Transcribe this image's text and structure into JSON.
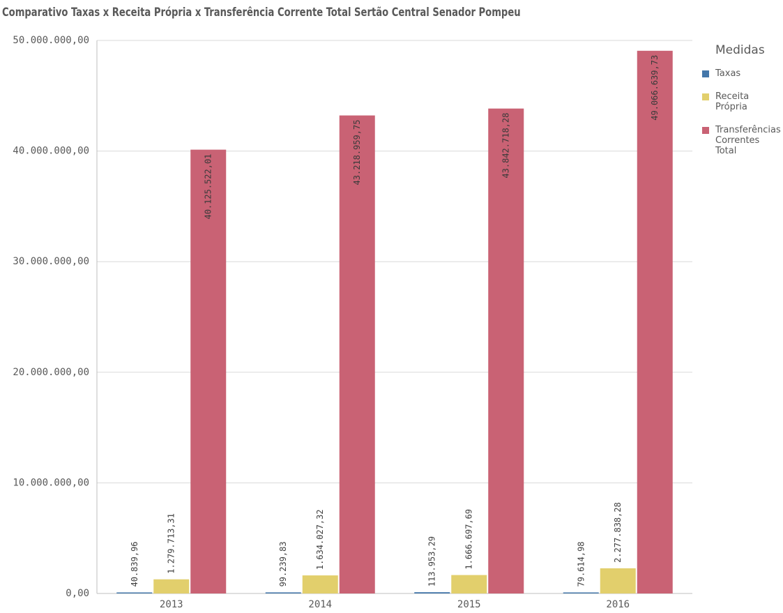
{
  "chart_data": {
    "type": "bar",
    "title": "Comparativo Taxas x Receita Própria x Transferência Corrente Total Sertão Central Senador Pompeu",
    "categories": [
      "2013",
      "2014",
      "2015",
      "2016"
    ],
    "series": [
      {
        "name": "Taxas",
        "color": "#4477aa",
        "values": [
          40839.96,
          99239.83,
          113953.29,
          79614.98
        ],
        "labels": [
          "40.839,96",
          "99.239,83",
          "113.953,29",
          "79.614,98"
        ]
      },
      {
        "name": "Receita Própria",
        "color": "#e2cf6c",
        "values": [
          1279713.31,
          1634027.32,
          1666697.69,
          2277838.28
        ],
        "labels": [
          "1.279.713,31",
          "1.634.027,32",
          "1.666.697,69",
          "2.277.838,28"
        ]
      },
      {
        "name": "Transferências Correntes Total",
        "color": "#c96274",
        "values": [
          40125522.01,
          43218959.75,
          43842718.28,
          49066639.73
        ],
        "labels": [
          "40.125.522,01",
          "43.218.959,75",
          "43.842.718,28",
          "49.066.639,73"
        ]
      }
    ],
    "yticks": [
      0,
      10000000,
      20000000,
      30000000,
      40000000,
      50000000
    ],
    "ytick_labels": [
      "0,00",
      "10.000.000,00",
      "20.000.000,00",
      "30.000.000,00",
      "40.000.000,00",
      "50.000.000,00"
    ],
    "ylim": [
      0,
      50000000
    ],
    "grid": true,
    "legend_title": "Medidas",
    "legend_position": "right"
  }
}
